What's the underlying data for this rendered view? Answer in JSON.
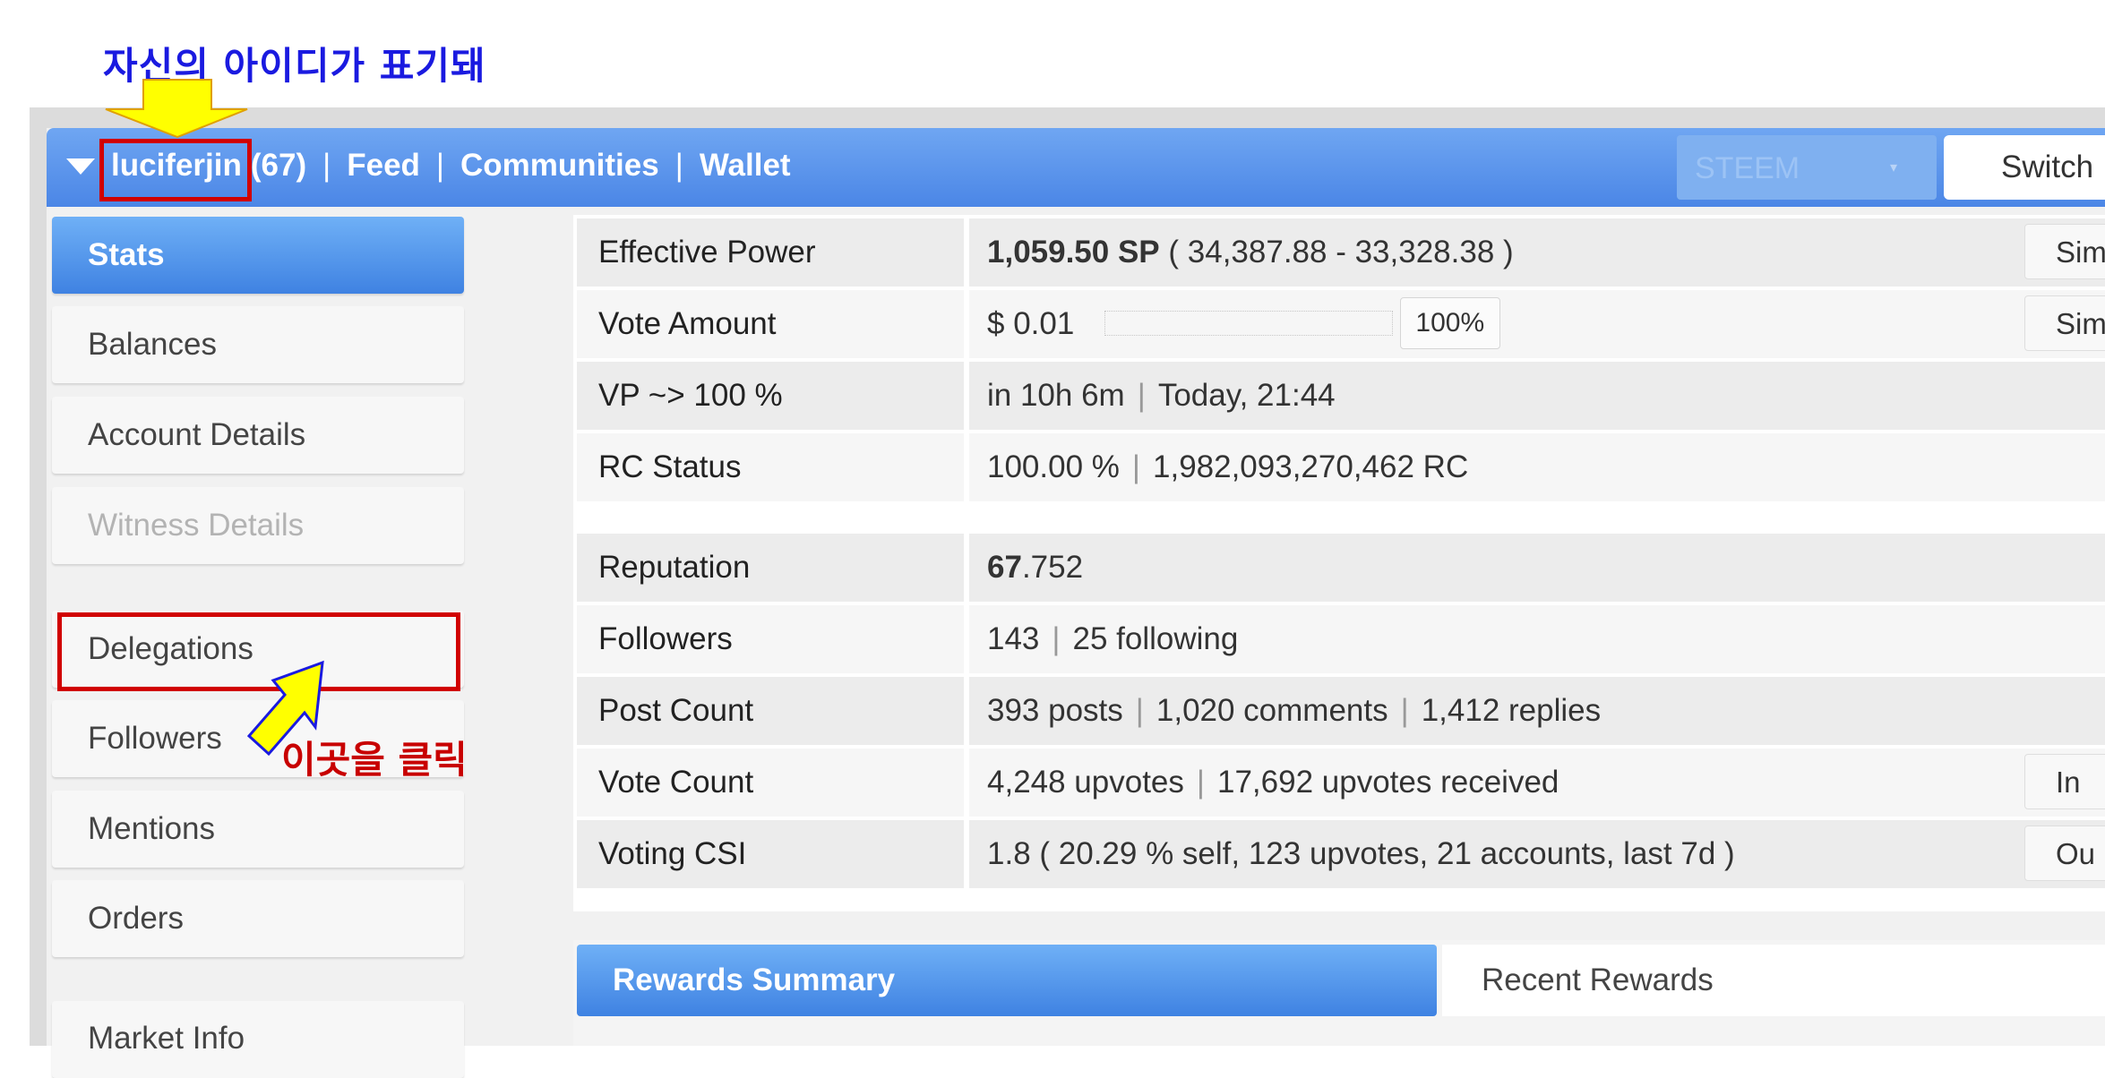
{
  "annotations": {
    "top_note": "자신의 아이디가 표기돼",
    "click_note": "이곳을 클릭"
  },
  "topbar": {
    "username": "luciferjin",
    "reputation": "(67)",
    "separator": "|",
    "nav_links": [
      "Feed",
      "Communities",
      "Wallet"
    ],
    "chain_selected": "STEEM",
    "chain_arrow": "▾",
    "switch_label": "Switch"
  },
  "sidebar": {
    "items": [
      {
        "label": "Stats",
        "state": "active"
      },
      {
        "label": "Balances",
        "state": "normal"
      },
      {
        "label": "Account Details",
        "state": "normal"
      },
      {
        "label": "Witness Details",
        "state": "disabled"
      },
      {
        "label": "Delegations",
        "state": "normal"
      },
      {
        "label": "Followers",
        "state": "normal"
      },
      {
        "label": "Mentions",
        "state": "normal"
      },
      {
        "label": "Orders",
        "state": "normal"
      },
      {
        "label": "Market Info",
        "state": "normal"
      }
    ]
  },
  "stats": {
    "effective_power": {
      "label": "Effective Power",
      "value_bold": "1,059.50 SP",
      "value_rest": "( 34,387.88 - 33,328.38 )",
      "button": "Sim"
    },
    "vote_amount": {
      "label": "Vote Amount",
      "value": "$ 0.01",
      "percent": "100%",
      "vote_weight_fraction": 1.0,
      "button": "Sim"
    },
    "vp": {
      "label": "VP ~> 100 %",
      "part1": "in 10h 6m",
      "part2": "Today, 21:44"
    },
    "rc_status": {
      "label": "RC Status",
      "part1": "100.00 %",
      "part2": "1,982,093,270,462 RC"
    },
    "reputation": {
      "label": "Reputation",
      "bold": "67",
      "rest": ".752"
    },
    "followers": {
      "label": "Followers",
      "part1": "143",
      "part2": "25 following"
    },
    "post_count": {
      "label": "Post Count",
      "part1": "393 posts",
      "part2": "1,020 comments",
      "part3": "1,412 replies"
    },
    "vote_count": {
      "label": "Vote Count",
      "part1": "4,248 upvotes",
      "part2": "17,692 upvotes received",
      "button": "In"
    },
    "voting_csi": {
      "label": "Voting CSI",
      "value": "1.8 ( 20.29 % self, 123 upvotes, 21 accounts, last 7d )",
      "button": "Ou"
    }
  },
  "tabs": {
    "active": "Rewards Summary",
    "inactive": "Recent Rewards"
  },
  "colors": {
    "header_blue": "#4b86e6",
    "annotation_blue": "#1a1ae0",
    "annotation_red": "#c80000",
    "arrow_yellow": "#ffff00"
  }
}
